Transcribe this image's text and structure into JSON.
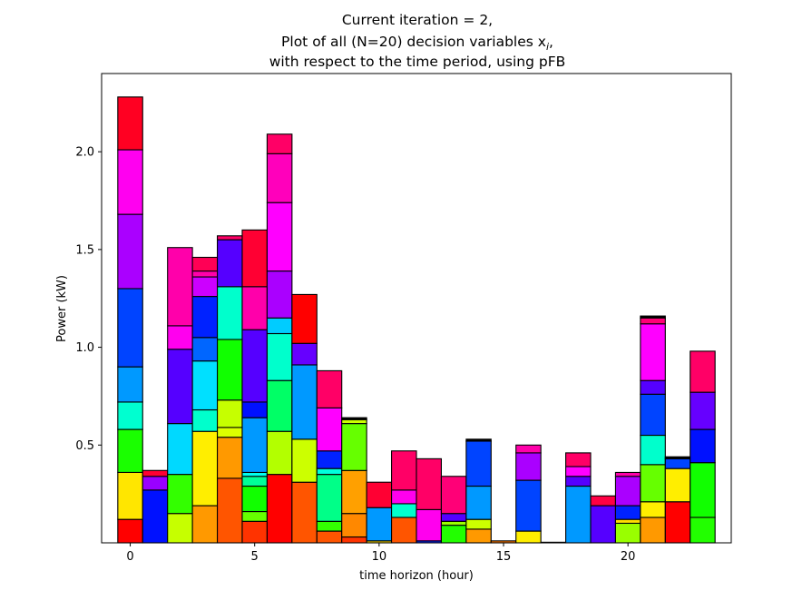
{
  "chart_data": {
    "type": "bar",
    "stacked": true,
    "title_lines": [
      "Current iteration = 2,",
      "Plot of all (N=20) decision variables x",
      "with respect to the time period, using pFB"
    ],
    "title_math": {
      "var": "x",
      "sub": "i",
      "after": ","
    },
    "xlabel": "time horizon (hour)",
    "ylabel": "Power (kW)",
    "xlim": [
      -1.15,
      24.15
    ],
    "ylim": [
      0,
      2.4
    ],
    "xticks": [
      0,
      5,
      10,
      15,
      20
    ],
    "yticks": [
      0.5,
      1.0,
      1.5,
      2.0
    ],
    "ytick_labels": [
      "0.5",
      "1.0",
      "1.5",
      "2.0"
    ],
    "grid": false,
    "legend": "none",
    "bar_width": 1.0,
    "stacks": [
      {
        "x": 0,
        "segments": [
          [
            0.12,
            "#ff0000"
          ],
          [
            0.24,
            "#ffe600"
          ],
          [
            0.22,
            "#1aff00"
          ],
          [
            0.14,
            "#00ffd0"
          ],
          [
            0.18,
            "#0099ff"
          ],
          [
            0.4,
            "#0044ff"
          ],
          [
            0.38,
            "#aa00ff"
          ],
          [
            0.33,
            "#ff00f0"
          ],
          [
            0.27,
            "#ff0022"
          ]
        ]
      },
      {
        "x": 1,
        "segments": [
          [
            0.27,
            "#0011ff"
          ],
          [
            0.07,
            "#9900ff"
          ],
          [
            0.03,
            "#ff0033"
          ]
        ]
      },
      {
        "x": 2,
        "segments": [
          [
            0.15,
            "#c6ff00"
          ],
          [
            0.2,
            "#33ff00"
          ],
          [
            0.26,
            "#00d9ff"
          ],
          [
            0.38,
            "#5500ff"
          ],
          [
            0.12,
            "#ff00ee"
          ],
          [
            0.4,
            "#ff00aa"
          ]
        ]
      },
      {
        "x": 3,
        "segments": [
          [
            0.19,
            "#ff9900"
          ],
          [
            0.38,
            "#ffee00"
          ],
          [
            0.11,
            "#00ffcc"
          ],
          [
            0.25,
            "#00e0ff"
          ],
          [
            0.12,
            "#0066ff"
          ],
          [
            0.21,
            "#0022ff"
          ],
          [
            0.1,
            "#cc00ff"
          ],
          [
            0.03,
            "#ff00aa"
          ],
          [
            0.07,
            "#ff0055"
          ]
        ]
      },
      {
        "x": 4,
        "segments": [
          [
            0.33,
            "#ff5500"
          ],
          [
            0.21,
            "#ff9900"
          ],
          [
            0.05,
            "#ddff00"
          ],
          [
            0.14,
            "#c6ff00"
          ],
          [
            0.31,
            "#11ff00"
          ],
          [
            0.27,
            "#00ffcc"
          ],
          [
            0.24,
            "#5500ff"
          ],
          [
            0.02,
            "#ff0066"
          ]
        ]
      },
      {
        "x": 5,
        "segments": [
          [
            0.11,
            "#ff3300"
          ],
          [
            0.05,
            "#66ff00"
          ],
          [
            0.13,
            "#11ff00"
          ],
          [
            0.05,
            "#00ff99"
          ],
          [
            0.02,
            "#00ffee"
          ],
          [
            0.28,
            "#0099ff"
          ],
          [
            0.08,
            "#0011ff"
          ],
          [
            0.37,
            "#5500ff"
          ],
          [
            0.22,
            "#ff00aa"
          ],
          [
            0.29,
            "#ff0033"
          ]
        ]
      },
      {
        "x": 6,
        "segments": [
          [
            0.35,
            "#ff0000"
          ],
          [
            0.22,
            "#b3ff00"
          ],
          [
            0.26,
            "#00ff66"
          ],
          [
            0.24,
            "#00ffcc"
          ],
          [
            0.08,
            "#00ccff"
          ],
          [
            0.24,
            "#aa00ff"
          ],
          [
            0.35,
            "#ff00ff"
          ],
          [
            0.25,
            "#ff00bb"
          ],
          [
            0.1,
            "#ff0066"
          ]
        ]
      },
      {
        "x": 7,
        "segments": [
          [
            0.31,
            "#ff5500"
          ],
          [
            0.22,
            "#ccff00"
          ],
          [
            0.38,
            "#0099ff"
          ],
          [
            0.11,
            "#6600ff"
          ],
          [
            0.25,
            "#ff0000"
          ]
        ]
      },
      {
        "x": 8,
        "segments": [
          [
            0.06,
            "#ff5500"
          ],
          [
            0.05,
            "#33ff00"
          ],
          [
            0.24,
            "#00ff88"
          ],
          [
            0.03,
            "#00ffdd"
          ],
          [
            0.09,
            "#0022ff"
          ],
          [
            0.22,
            "#ff00ff"
          ],
          [
            0.19,
            "#ff0066"
          ]
        ]
      },
      {
        "x": 9,
        "segments": [
          [
            0.03,
            "#ff3300"
          ],
          [
            0.12,
            "#ff8800"
          ],
          [
            0.22,
            "#ffa000"
          ],
          [
            0.24,
            "#66ff00"
          ],
          [
            0.02,
            "#ccff00"
          ],
          [
            0.01,
            "#000000"
          ]
        ]
      },
      {
        "x": 10,
        "segments": [
          [
            0.01,
            "#ffdd00"
          ],
          [
            0.17,
            "#0099ff"
          ],
          [
            0.13,
            "#ff0033"
          ]
        ]
      },
      {
        "x": 11,
        "segments": [
          [
            0.13,
            "#ff5500"
          ],
          [
            0.07,
            "#00ffcc"
          ],
          [
            0.07,
            "#ff00ee"
          ],
          [
            0.2,
            "#ff0066"
          ]
        ]
      },
      {
        "x": 12,
        "segments": [
          [
            0.01,
            "#0022ff"
          ],
          [
            0.16,
            "#ff00ee"
          ],
          [
            0.26,
            "#ff0066"
          ]
        ]
      },
      {
        "x": 13,
        "segments": [
          [
            0.09,
            "#22ff00"
          ],
          [
            0.02,
            "#99ff00"
          ],
          [
            0.04,
            "#5500ff"
          ],
          [
            0.19,
            "#ff0077"
          ]
        ]
      },
      {
        "x": 14,
        "segments": [
          [
            0.07,
            "#ff9900"
          ],
          [
            0.05,
            "#ccff00"
          ],
          [
            0.17,
            "#0099ff"
          ],
          [
            0.23,
            "#0044ff"
          ],
          [
            0.01,
            "#000000"
          ]
        ]
      },
      {
        "x": 15,
        "segments": [
          [
            0.01,
            "#ff7700"
          ]
        ]
      },
      {
        "x": 16,
        "segments": [
          [
            0.06,
            "#ffee00"
          ],
          [
            0.26,
            "#0044ff"
          ],
          [
            0.14,
            "#aa00ff"
          ],
          [
            0.04,
            "#ff00aa"
          ]
        ]
      },
      {
        "x": 17,
        "segments": [
          [
            0.003,
            "#ff0000"
          ]
        ]
      },
      {
        "x": 18,
        "segments": [
          [
            0.29,
            "#0099ff"
          ],
          [
            0.05,
            "#5500ff"
          ],
          [
            0.05,
            "#ff00ff"
          ],
          [
            0.07,
            "#ff0066"
          ]
        ]
      },
      {
        "x": 19,
        "segments": [
          [
            0.19,
            "#5500ff"
          ],
          [
            0.05,
            "#ff0044"
          ]
        ]
      },
      {
        "x": 20,
        "segments": [
          [
            0.1,
            "#99ff00"
          ],
          [
            0.02,
            "#ffdd00"
          ],
          [
            0.07,
            "#0022ff"
          ],
          [
            0.15,
            "#aa00ff"
          ],
          [
            0.02,
            "#ff00aa"
          ]
        ]
      },
      {
        "x": 21,
        "segments": [
          [
            0.13,
            "#ff9900"
          ],
          [
            0.08,
            "#ffee00"
          ],
          [
            0.19,
            "#66ff00"
          ],
          [
            0.15,
            "#00ffcc"
          ],
          [
            0.21,
            "#0044ff"
          ],
          [
            0.07,
            "#5500ff"
          ],
          [
            0.29,
            "#ff00ff"
          ],
          [
            0.03,
            "#ff0077"
          ],
          [
            0.01,
            "#000000"
          ]
        ]
      },
      {
        "x": 22,
        "segments": [
          [
            0.21,
            "#ff0000"
          ],
          [
            0.17,
            "#ffee00"
          ],
          [
            0.05,
            "#0044ff"
          ],
          [
            0.01,
            "#000000"
          ]
        ]
      },
      {
        "x": 23,
        "segments": [
          [
            0.13,
            "#22ff00"
          ],
          [
            0.28,
            "#11ff00"
          ],
          [
            0.17,
            "#0011ff"
          ],
          [
            0.19,
            "#6600ff"
          ],
          [
            0.21,
            "#ff0066"
          ]
        ]
      }
    ]
  }
}
